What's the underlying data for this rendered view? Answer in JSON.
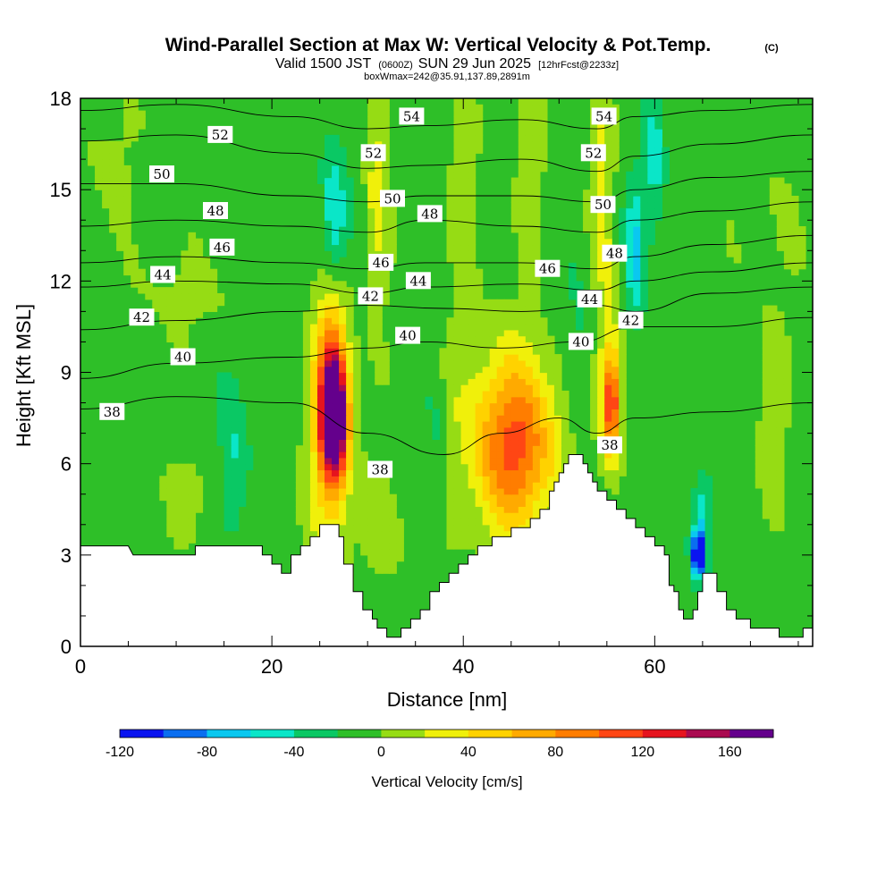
{
  "header": {
    "title": "Wind-Parallel Section at Max W: Vertical Velocity & Pot.Temp.",
    "copyright": "(C)",
    "valid_prefix": "Valid 1500 JST",
    "valid_utc": "(0600Z)",
    "valid_date": "SUN 29 Jun 2025",
    "forecast_info": "[12hrFcst@2233z]",
    "box_info": "boxWmax=242@35.91,137.89,2891m"
  },
  "chart_data": {
    "type": "heatmap",
    "title": "Wind-Parallel Section at Max W: Vertical Velocity & Pot.Temp.",
    "xlabel": "Distance [nm]",
    "ylabel": "Height [Kft MSL]",
    "xlim": [
      0,
      76.5
    ],
    "ylim": [
      0,
      18
    ],
    "x_ticks": [
      0,
      20,
      40,
      60
    ],
    "y_ticks": [
      0,
      3,
      6,
      9,
      12,
      15,
      18
    ],
    "x_tick_labels": [
      "0",
      "20",
      "40",
      "60"
    ],
    "y_tick_labels": [
      "0",
      "3",
      "6",
      "9",
      "12",
      "15",
      "18"
    ],
    "colorbar": {
      "label": "Vertical Velocity [cm/s]",
      "min": -120,
      "max": 180,
      "step": 20,
      "tick_values": [
        -120,
        -80,
        -40,
        0,
        40,
        80,
        120,
        160
      ],
      "tick_labels": [
        "-120",
        "-80",
        "-40",
        "0",
        "40",
        "80",
        "120",
        "160"
      ],
      "colors": [
        "#0a14f0",
        "#0a6ef0",
        "#0ac8f0",
        "#0ae6c8",
        "#0ac864",
        "#2ebf28",
        "#96dc14",
        "#f0f00a",
        "#ffd200",
        "#ffaa00",
        "#ff7d00",
        "#ff4614",
        "#e6141e",
        "#aa0a50",
        "#64008c"
      ]
    },
    "terrain_kft": [
      [
        0,
        3.3
      ],
      [
        5,
        3.3
      ],
      [
        5.5,
        3.0
      ],
      [
        12,
        3.0
      ],
      [
        12,
        3.3
      ],
      [
        19,
        3.3
      ],
      [
        19,
        3.0
      ],
      [
        20,
        3.0
      ],
      [
        20,
        2.7
      ],
      [
        21,
        2.7
      ],
      [
        21,
        2.4
      ],
      [
        22,
        2.4
      ],
      [
        22,
        3.0
      ],
      [
        23,
        3.0
      ],
      [
        23,
        3.3
      ],
      [
        24,
        3.3
      ],
      [
        24,
        3.6
      ],
      [
        25,
        3.6
      ],
      [
        25,
        4.0
      ],
      [
        27,
        4.0
      ],
      [
        27,
        3.6
      ],
      [
        27.5,
        3.6
      ],
      [
        27.5,
        2.7
      ],
      [
        28.5,
        2.7
      ],
      [
        28.5,
        1.8
      ],
      [
        29.5,
        1.8
      ],
      [
        29.5,
        1.2
      ],
      [
        30.5,
        1.2
      ],
      [
        30.5,
        0.9
      ],
      [
        31,
        0.9
      ],
      [
        31,
        0.6
      ],
      [
        32,
        0.6
      ],
      [
        32,
        0.3
      ],
      [
        33.5,
        0.3
      ],
      [
        33.5,
        0.6
      ],
      [
        34.5,
        0.6
      ],
      [
        34.5,
        0.9
      ],
      [
        35.5,
        0.9
      ],
      [
        35.5,
        1.2
      ],
      [
        36.5,
        1.2
      ],
      [
        36.5,
        1.8
      ],
      [
        37.5,
        1.8
      ],
      [
        37.5,
        2.1
      ],
      [
        38.5,
        2.1
      ],
      [
        38.5,
        2.4
      ],
      [
        39.5,
        2.4
      ],
      [
        39.5,
        2.7
      ],
      [
        40.5,
        2.7
      ],
      [
        40.5,
        3.0
      ],
      [
        41.5,
        3.0
      ],
      [
        41.5,
        3.3
      ],
      [
        43,
        3.3
      ],
      [
        43,
        3.6
      ],
      [
        45,
        3.6
      ],
      [
        45,
        3.9
      ],
      [
        47,
        3.9
      ],
      [
        47,
        4.2
      ],
      [
        48,
        4.2
      ],
      [
        48,
        4.5
      ],
      [
        49,
        4.5
      ],
      [
        49,
        5.1
      ],
      [
        49.5,
        5.1
      ],
      [
        49.5,
        5.4
      ],
      [
        50,
        5.4
      ],
      [
        50,
        5.7
      ],
      [
        50.5,
        5.7
      ],
      [
        50.5,
        6.0
      ],
      [
        51,
        6.0
      ],
      [
        51,
        6.3
      ],
      [
        52.5,
        6.3
      ],
      [
        52.5,
        6.0
      ],
      [
        53,
        6.0
      ],
      [
        53,
        5.7
      ],
      [
        53.5,
        5.7
      ],
      [
        53.5,
        5.4
      ],
      [
        54,
        5.4
      ],
      [
        54,
        5.1
      ],
      [
        55,
        5.1
      ],
      [
        55,
        4.8
      ],
      [
        56,
        4.8
      ],
      [
        56,
        4.5
      ],
      [
        57,
        4.5
      ],
      [
        57,
        4.2
      ],
      [
        58,
        4.2
      ],
      [
        58,
        3.9
      ],
      [
        59,
        3.9
      ],
      [
        59,
        3.6
      ],
      [
        60,
        3.6
      ],
      [
        60,
        3.3
      ],
      [
        61,
        3.3
      ],
      [
        61,
        3.0
      ],
      [
        61.5,
        3.0
      ],
      [
        61.5,
        2.0
      ],
      [
        62,
        2.0
      ],
      [
        62,
        1.8
      ],
      [
        62.5,
        1.8
      ],
      [
        62.5,
        1.2
      ],
      [
        63,
        1.2
      ],
      [
        63,
        0.9
      ],
      [
        64,
        0.9
      ],
      [
        64,
        1.2
      ],
      [
        64.5,
        1.2
      ],
      [
        64.5,
        1.8
      ],
      [
        65,
        1.8
      ],
      [
        65,
        2.4
      ],
      [
        66.5,
        2.4
      ],
      [
        66.5,
        1.8
      ],
      [
        67.5,
        1.8
      ],
      [
        67.5,
        1.2
      ],
      [
        68.5,
        1.2
      ],
      [
        68.5,
        0.9
      ],
      [
        70,
        0.9
      ],
      [
        70,
        0.6
      ],
      [
        73,
        0.6
      ],
      [
        73,
        0.3
      ],
      [
        75.5,
        0.3
      ],
      [
        75.5,
        0.6
      ],
      [
        76.5,
        0.6
      ]
    ],
    "w_field_cm_s": {
      "background": -10,
      "features": [
        {
          "x": 26.5,
          "y": 7.5,
          "wx": 1.3,
          "wy": 1.8,
          "v": 170
        },
        {
          "x": 26.3,
          "y": 8.5,
          "wx": 1.6,
          "wy": 3.2,
          "v": 95
        },
        {
          "x": 26.0,
          "y": 6.5,
          "wx": 2.4,
          "wy": 4.5,
          "v": 45
        },
        {
          "x": 45.5,
          "y": 6.5,
          "wx": 4.0,
          "wy": 2.6,
          "v": 80
        },
        {
          "x": 44.5,
          "y": 7.0,
          "wx": 6.0,
          "wy": 3.5,
          "v": 40
        },
        {
          "x": 55.5,
          "y": 8.0,
          "wx": 0.8,
          "wy": 1.5,
          "v": 95
        },
        {
          "x": 55.3,
          "y": 8.5,
          "wx": 1.3,
          "wy": 3.0,
          "v": 50
        },
        {
          "x": 64.5,
          "y": 3.0,
          "wx": 0.6,
          "wy": 0.7,
          "v": -120
        },
        {
          "x": 65.0,
          "y": 4.0,
          "wx": 1.0,
          "wy": 1.7,
          "v": -50
        },
        {
          "x": 26.5,
          "y": 14.0,
          "wx": 1.3,
          "wy": 2.5,
          "v": -55
        },
        {
          "x": 58.0,
          "y": 13.0,
          "wx": 1.0,
          "wy": 2.2,
          "v": -55
        },
        {
          "x": 60.0,
          "y": 16.0,
          "wx": 1.0,
          "wy": 2.5,
          "v": -40
        },
        {
          "x": 31.0,
          "y": 15.0,
          "wx": 1.2,
          "wy": 4.0,
          "v": 40
        },
        {
          "x": 54.5,
          "y": 15.0,
          "wx": 1.2,
          "wy": 3.5,
          "v": 40
        },
        {
          "x": 40.0,
          "y": 15.0,
          "wx": 1.5,
          "wy": 4.0,
          "v": 25
        },
        {
          "x": 47.0,
          "y": 15.5,
          "wx": 1.5,
          "wy": 3.0,
          "v": 25
        },
        {
          "x": 11.0,
          "y": 11.5,
          "wx": 6.0,
          "wy": 1.5,
          "v": 15
        },
        {
          "x": 3.0,
          "y": 16.0,
          "wx": 3.0,
          "wy": 2.5,
          "v": 15
        },
        {
          "x": 72.0,
          "y": 14.0,
          "wx": 4.0,
          "wy": 4.0,
          "v": 10
        },
        {
          "x": 72.0,
          "y": 7.5,
          "wx": 2.0,
          "wy": 3.0,
          "v": 18
        },
        {
          "x": 12.0,
          "y": 5.0,
          "wx": 3.0,
          "wy": 1.8,
          "v": 18
        },
        {
          "x": 32.0,
          "y": 4.0,
          "wx": 3.0,
          "wy": 2.0,
          "v": 18
        },
        {
          "x": 16.0,
          "y": 6.0,
          "wx": 1.5,
          "wy": 2.5,
          "v": -35
        },
        {
          "x": 37.0,
          "y": 6.5,
          "wx": 1.0,
          "wy": 3.5,
          "v": -20
        },
        {
          "x": 52.0,
          "y": 9.5,
          "wx": 1.5,
          "wy": 3.0,
          "v": -20
        }
      ]
    },
    "theta_contours": [
      {
        "level": 38,
        "label": "38",
        "points": [
          [
            0,
            7.8
          ],
          [
            10,
            8.2
          ],
          [
            22,
            8.0
          ],
          [
            30,
            7.0
          ],
          [
            38,
            6.3
          ],
          [
            44,
            7.0
          ],
          [
            50,
            7.5
          ],
          [
            54,
            7.0
          ],
          [
            58,
            7.5
          ],
          [
            66,
            7.7
          ],
          [
            76.5,
            8.0
          ]
        ]
      },
      {
        "level": 40,
        "label": "40",
        "points": [
          [
            0,
            8.8
          ],
          [
            10,
            9.3
          ],
          [
            22,
            9.5
          ],
          [
            30,
            9.8
          ],
          [
            36,
            10.0
          ],
          [
            44,
            9.8
          ],
          [
            52,
            10.0
          ],
          [
            58,
            10.5
          ],
          [
            66,
            10.5
          ],
          [
            76.5,
            10.8
          ]
        ]
      },
      {
        "level": 42,
        "label": "42",
        "points": [
          [
            0,
            10.4
          ],
          [
            10,
            10.7
          ],
          [
            22,
            11.0
          ],
          [
            30,
            11.2
          ],
          [
            38,
            11.1
          ],
          [
            46,
            11.0
          ],
          [
            54,
            11.2
          ],
          [
            58,
            11.0
          ],
          [
            66,
            11.6
          ],
          [
            76.5,
            11.8
          ]
        ]
      },
      {
        "level": 44,
        "label": "44",
        "points": [
          [
            0,
            11.8
          ],
          [
            10,
            12.0
          ],
          [
            22,
            11.9
          ],
          [
            30,
            11.6
          ],
          [
            36,
            11.8
          ],
          [
            46,
            11.9
          ],
          [
            54,
            11.7
          ],
          [
            58,
            12.0
          ],
          [
            66,
            12.3
          ],
          [
            76.5,
            12.6
          ]
        ]
      },
      {
        "level": 46,
        "label": "46",
        "points": [
          [
            0,
            12.6
          ],
          [
            10,
            12.8
          ],
          [
            22,
            12.6
          ],
          [
            30,
            12.4
          ],
          [
            36,
            12.6
          ],
          [
            46,
            12.6
          ],
          [
            54,
            12.4
          ],
          [
            58,
            12.8
          ],
          [
            66,
            13.2
          ],
          [
            76.5,
            13.5
          ]
        ]
      },
      {
        "level": 48,
        "label": "48",
        "points": [
          [
            0,
            13.8
          ],
          [
            10,
            14.0
          ],
          [
            22,
            13.8
          ],
          [
            30,
            13.6
          ],
          [
            36,
            14.0
          ],
          [
            46,
            13.8
          ],
          [
            54,
            13.6
          ],
          [
            58,
            14.0
          ],
          [
            66,
            14.3
          ],
          [
            76.5,
            14.6
          ]
        ]
      },
      {
        "level": 50,
        "label": "50",
        "points": [
          [
            0,
            15.2
          ],
          [
            10,
            15.2
          ],
          [
            22,
            14.8
          ],
          [
            30,
            14.6
          ],
          [
            36,
            14.8
          ],
          [
            46,
            14.8
          ],
          [
            54,
            14.6
          ],
          [
            58,
            15.0
          ],
          [
            66,
            15.4
          ],
          [
            76.5,
            15.6
          ]
        ]
      },
      {
        "level": 52,
        "label": "52",
        "points": [
          [
            0,
            16.6
          ],
          [
            10,
            16.8
          ],
          [
            22,
            16.2
          ],
          [
            30,
            15.7
          ],
          [
            36,
            15.8
          ],
          [
            46,
            16.0
          ],
          [
            54,
            15.6
          ],
          [
            58,
            16.1
          ],
          [
            66,
            16.5
          ],
          [
            76.5,
            16.8
          ]
        ]
      },
      {
        "level": 54,
        "label": "54",
        "points": [
          [
            0,
            17.6
          ],
          [
            10,
            17.8
          ],
          [
            22,
            17.4
          ],
          [
            30,
            17.0
          ],
          [
            36,
            17.1
          ],
          [
            46,
            17.3
          ],
          [
            54,
            17.0
          ],
          [
            58,
            17.4
          ],
          [
            66,
            17.6
          ],
          [
            76.5,
            17.8
          ]
        ]
      }
    ],
    "theta_labels": [
      {
        "text": "38",
        "x": 3.3,
        "y": 7.7
      },
      {
        "text": "38",
        "x": 31.3,
        "y": 5.8
      },
      {
        "text": "38",
        "x": 55.3,
        "y": 6.6
      },
      {
        "text": "40",
        "x": 10.7,
        "y": 9.5
      },
      {
        "text": "40",
        "x": 34.2,
        "y": 10.2
      },
      {
        "text": "40",
        "x": 52.3,
        "y": 10.0
      },
      {
        "text": "42",
        "x": 6.4,
        "y": 10.8
      },
      {
        "text": "42",
        "x": 30.3,
        "y": 11.5
      },
      {
        "text": "42",
        "x": 57.5,
        "y": 10.7
      },
      {
        "text": "44",
        "x": 8.6,
        "y": 12.2
      },
      {
        "text": "44",
        "x": 35.3,
        "y": 12.0
      },
      {
        "text": "44",
        "x": 53.2,
        "y": 11.4
      },
      {
        "text": "46",
        "x": 14.8,
        "y": 13.1
      },
      {
        "text": "46",
        "x": 31.4,
        "y": 12.6
      },
      {
        "text": "46",
        "x": 48.8,
        "y": 12.4
      },
      {
        "text": "48",
        "x": 14.1,
        "y": 14.3
      },
      {
        "text": "48",
        "x": 36.5,
        "y": 14.2
      },
      {
        "text": "48",
        "x": 55.8,
        "y": 12.9
      },
      {
        "text": "50",
        "x": 8.5,
        "y": 15.5
      },
      {
        "text": "50",
        "x": 32.6,
        "y": 14.7
      },
      {
        "text": "50",
        "x": 54.6,
        "y": 14.5
      },
      {
        "text": "52",
        "x": 14.6,
        "y": 16.8
      },
      {
        "text": "52",
        "x": 30.6,
        "y": 16.2
      },
      {
        "text": "52",
        "x": 53.6,
        "y": 16.2
      },
      {
        "text": "54",
        "x": 34.6,
        "y": 17.4
      },
      {
        "text": "54",
        "x": 54.7,
        "y": 17.4
      }
    ]
  }
}
